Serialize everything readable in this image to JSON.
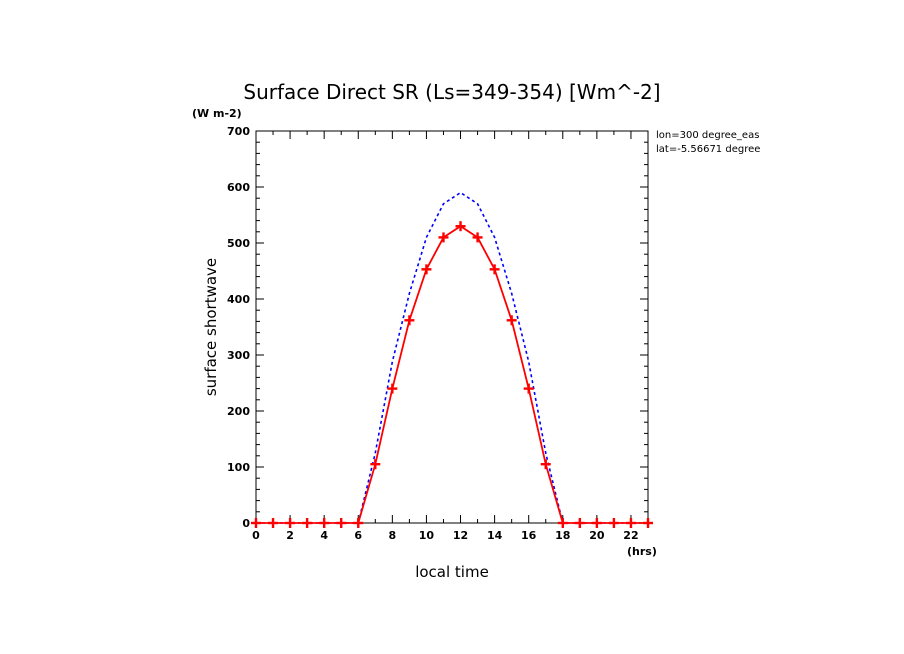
{
  "chart_data": {
    "type": "line",
    "title": "Surface Direct SR (Ls=349-354) [Wm^-2]",
    "yunit": "(W m-2)",
    "xunit": "(hrs)",
    "xlabel": "local time",
    "ylabel": "surface shortwave",
    "info": [
      "lon=300 degree_eas",
      "lat=-5.56671 degree"
    ],
    "xlim": [
      0,
      23
    ],
    "ylim": [
      0,
      700
    ],
    "xticks": [
      "0",
      "2",
      "4",
      "6",
      "8",
      "10",
      "12",
      "14",
      "16",
      "18",
      "20",
      "22"
    ],
    "yticks": [
      "0",
      "100",
      "200",
      "300",
      "400",
      "500",
      "600",
      "700"
    ],
    "grid": false,
    "x": [
      0,
      1,
      2,
      3,
      4,
      5,
      6,
      7,
      8,
      9,
      10,
      11,
      12,
      13,
      14,
      15,
      16,
      17,
      18,
      19,
      20,
      21,
      22,
      23
    ],
    "series": [
      {
        "color": "#ff0000",
        "style": "solid-markers",
        "values": [
          0,
          0,
          0,
          0,
          0,
          0,
          0,
          105,
          240,
          362,
          453,
          510,
          530,
          510,
          453,
          362,
          240,
          105,
          0,
          0,
          0,
          0,
          0,
          0
        ]
      },
      {
        "color": "#0000ff",
        "style": "dashed",
        "values": [
          0,
          0,
          0,
          0,
          0,
          0,
          0,
          125,
          288,
          410,
          510,
          570,
          590,
          570,
          510,
          410,
          288,
          125,
          0,
          0,
          0,
          0,
          0,
          0
        ]
      }
    ]
  }
}
